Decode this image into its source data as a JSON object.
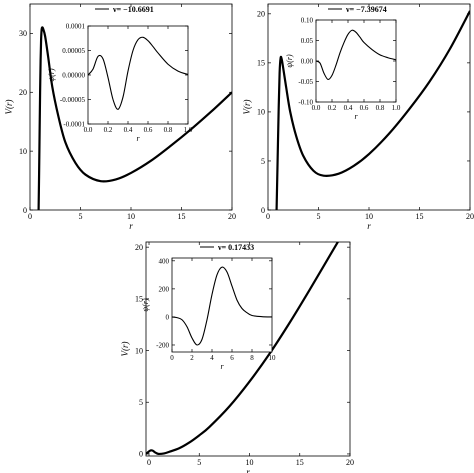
{
  "chart_data": [
    {
      "type": "line",
      "xlabel": "r",
      "ylabel": "V(r)",
      "xlim": [
        0,
        20
      ],
      "ylim": [
        0,
        35
      ],
      "xticks": [
        0,
        5,
        10,
        15,
        20
      ],
      "yticks": [
        0,
        10,
        20,
        30
      ],
      "legend": "ν= −10.6691",
      "series": [
        {
          "x": [
            0.85,
            0.9,
            0.95,
            1.0,
            1.05,
            1.1,
            1.15,
            1.2,
            1.3,
            1.5,
            1.8,
            2.2,
            2.8,
            3.5,
            4.5,
            5.5,
            7.0,
            8.5,
            10,
            12,
            14,
            16,
            18,
            20
          ],
          "y": [
            0,
            6,
            13,
            20,
            25.5,
            29,
            30.6,
            31,
            30.8,
            29.5,
            26,
            21,
            16,
            11.5,
            8,
            6,
            4.9,
            5.2,
            6.3,
            8.4,
            11,
            13.8,
            16.8,
            20
          ]
        }
      ],
      "inset": {
        "xlabel": "r",
        "ylabel": "ψ(r)",
        "xlim": [
          0,
          1
        ],
        "ylim": [
          -0.0001,
          0.0001
        ],
        "xticks": [
          0.0,
          0.2,
          0.4,
          0.6,
          0.8,
          1.0
        ],
        "xtick_labels": [
          "0.0",
          "0.2",
          "0.4",
          "0.6",
          "0.8",
          "1.0"
        ],
        "yticks": [
          -0.0001,
          -5e-05,
          0,
          5e-05,
          0.0001
        ],
        "ytick_labels": [
          "-0.0001",
          "-0.00005",
          "0.00000",
          "0.00005",
          "0.0001"
        ],
        "series": [
          {
            "x": [
              0.0,
              0.05,
              0.1,
              0.15,
              0.2,
              0.25,
              0.3,
              0.35,
              0.4,
              0.45,
              0.5,
              0.55,
              0.6,
              0.65,
              0.7,
              0.8,
              0.9,
              1.0
            ],
            "y": [
              0.0,
              1.2e-05,
              3.8e-05,
              3.3e-05,
              -5e-06,
              -5e-05,
              -7e-05,
              -4.5e-05,
              8e-06,
              5e-05,
              7.2e-05,
              7.7e-05,
              7e-05,
              5.8e-05,
              4.5e-05,
              2.2e-05,
              8e-06,
              1e-06
            ]
          }
        ]
      }
    },
    {
      "type": "line",
      "xlabel": "r",
      "ylabel": "V(r)",
      "xlim": [
        0,
        20
      ],
      "ylim": [
        0,
        21
      ],
      "xticks": [
        0,
        5,
        10,
        15,
        20
      ],
      "yticks": [
        0,
        5,
        10,
        15,
        20
      ],
      "legend": "ν= −7.39674",
      "series": [
        {
          "x": [
            0.85,
            0.95,
            1.05,
            1.15,
            1.25,
            1.35,
            1.5,
            1.8,
            2.2,
            2.8,
            3.5,
            4.5,
            5.5,
            7.0,
            8.5,
            10,
            12,
            14,
            16,
            18,
            20
          ],
          "y": [
            0,
            5,
            10,
            14,
            15.5,
            15.4,
            14.5,
            12.5,
            10,
            7.5,
            5.5,
            4,
            3.5,
            3.7,
            4.5,
            5.7,
            7.8,
            10.3,
            13.1,
            16.4,
            20.3
          ]
        }
      ],
      "inset": {
        "xlabel": "r",
        "ylabel": "ψ(r)",
        "xlim": [
          0,
          1
        ],
        "ylim": [
          -0.1,
          0.1
        ],
        "xticks": [
          0.0,
          0.2,
          0.4,
          0.6,
          0.8,
          1.0
        ],
        "xtick_labels": [
          "0.0",
          "0.2",
          "0.4",
          "0.6",
          "0.8",
          "1.0"
        ],
        "yticks": [
          -0.1,
          -0.05,
          0,
          0.05,
          0.1
        ],
        "ytick_labels": [
          "-0.10",
          "-0.05",
          "0.00",
          "0.05",
          "0.10"
        ],
        "series": [
          {
            "x": [
              0.0,
              0.05,
              0.1,
              0.15,
              0.2,
              0.25,
              0.3,
              0.35,
              0.4,
              0.45,
              0.5,
              0.55,
              0.6,
              0.7,
              0.8,
              0.9,
              1.0
            ],
            "y": [
              0.0,
              -0.005,
              -0.03,
              -0.045,
              -0.035,
              -0.01,
              0.02,
              0.045,
              0.065,
              0.075,
              0.07,
              0.058,
              0.045,
              0.028,
              0.015,
              0.008,
              0.003
            ]
          }
        ]
      }
    },
    {
      "type": "line",
      "xlabel": "r",
      "ylabel": "V(r)",
      "xlim": [
        -0.3,
        20
      ],
      "ylim": [
        -0.2,
        20.5
      ],
      "xticks": [
        0,
        5,
        10,
        15,
        20
      ],
      "yticks": [
        0,
        5,
        10,
        15,
        20
      ],
      "legend": "ν= 0.17433",
      "series": [
        {
          "x": [
            -0.3,
            0,
            0.2,
            0.4,
            0.6,
            0.8,
            1.0,
            1.5,
            2.0,
            3.0,
            4.0,
            5.0,
            6.0,
            8.0,
            10,
            12,
            14,
            16,
            18,
            20
          ],
          "y": [
            0,
            0.25,
            0.35,
            0.3,
            0.15,
            0.05,
            0.0,
            0.05,
            0.2,
            0.55,
            1.1,
            1.8,
            2.6,
            4.6,
            7.0,
            9.7,
            12.7,
            15.9,
            19.2,
            22.5
          ]
        }
      ],
      "inset": {
        "xlabel": "r",
        "ylabel": "ψ(r)",
        "xlim": [
          0,
          10
        ],
        "ylim": [
          -250,
          420
        ],
        "xticks": [
          0,
          2,
          4,
          6,
          8,
          10
        ],
        "xtick_labels": [
          "0",
          "2",
          "4",
          "6",
          "8",
          "10"
        ],
        "yticks": [
          -200,
          0,
          200,
          400
        ],
        "ytick_labels": [
          "-200",
          "0",
          "200",
          "400"
        ],
        "series": [
          {
            "x": [
              0,
              0.5,
              1.0,
              1.5,
              2.0,
              2.5,
              3.0,
              3.5,
              4.0,
              4.5,
              5.0,
              5.5,
              6.0,
              6.5,
              7.0,
              7.5,
              8.0,
              9.0,
              10.0
            ],
            "y": [
              0,
              -5,
              -20,
              -70,
              -150,
              -200,
              -160,
              -20,
              160,
              300,
              355,
              320,
              220,
              120,
              60,
              30,
              10,
              2,
              0
            ]
          }
        ]
      }
    }
  ]
}
